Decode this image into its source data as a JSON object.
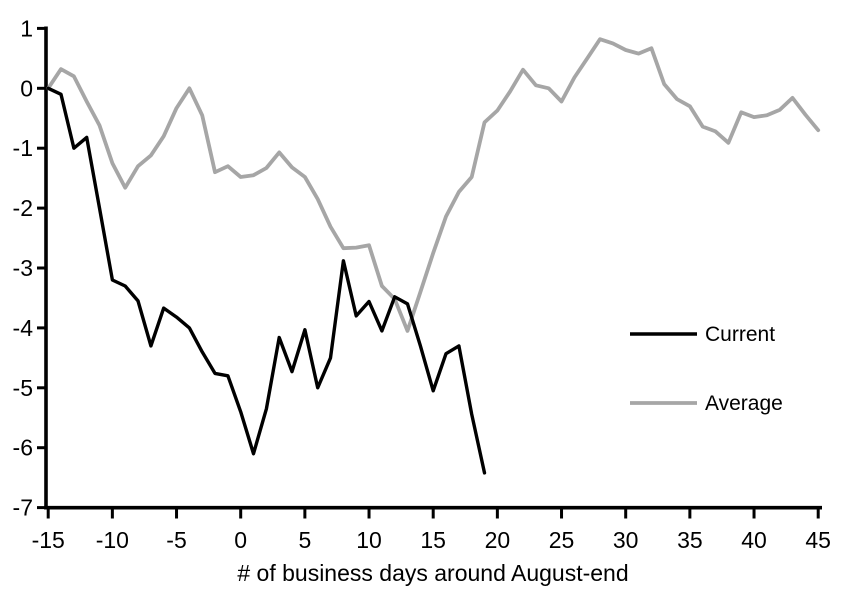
{
  "chart_data": {
    "type": "line",
    "title": "",
    "xlabel": "# of business days around August-end",
    "ylabel": "",
    "xlim": [
      -15,
      45
    ],
    "ylim": [
      -7,
      1
    ],
    "x_ticks": [
      -15,
      -10,
      -5,
      0,
      5,
      10,
      15,
      20,
      25,
      30,
      35,
      40,
      45
    ],
    "y_ticks": [
      1,
      0,
      -1,
      -2,
      -3,
      -4,
      -5,
      -6,
      -7
    ],
    "grid": false,
    "legend_position": "right-middle",
    "axis_color": "#000000",
    "series": [
      {
        "name": "Current",
        "color": "#000000",
        "stroke_width": 3.4,
        "x": [
          -15,
          -14,
          -13,
          -12,
          -11,
          -10,
          -9,
          -8,
          -7,
          -6,
          -5,
          -4,
          -3,
          -2,
          -1,
          0,
          1,
          2,
          3,
          4,
          5,
          6,
          7,
          8,
          9,
          10,
          11,
          12,
          13,
          14,
          15,
          16,
          17,
          18,
          19
        ],
        "values": [
          0,
          -0.1,
          -1,
          -0.82,
          -2,
          -3.2,
          -3.3,
          -3.55,
          -4.3,
          -3.67,
          -3.82,
          -4,
          -4.4,
          -4.76,
          -4.8,
          -5.4,
          -6.1,
          -5.35,
          -4.16,
          -4.73,
          -4.03,
          -5,
          -4.5,
          -2.88,
          -3.8,
          -3.56,
          -4.05,
          -3.48,
          -3.6,
          -4.3,
          -5.05,
          -4.43,
          -4.3,
          -5.44,
          -6.42
        ]
      },
      {
        "name": "Average",
        "color": "#a6a6a6",
        "stroke_width": 3.8,
        "x": [
          -15,
          -14,
          -13,
          -12,
          -11,
          -10,
          -9,
          -8,
          -7,
          -6,
          -5,
          -4,
          -3,
          -2,
          -1,
          0,
          1,
          2,
          3,
          4,
          5,
          6,
          7,
          8,
          9,
          10,
          11,
          12,
          13,
          14,
          15,
          16,
          17,
          18,
          19,
          20,
          21,
          22,
          23,
          24,
          25,
          26,
          27,
          28,
          29,
          30,
          31,
          32,
          33,
          34,
          35,
          36,
          37,
          38,
          39,
          40,
          41,
          42,
          43,
          44,
          45
        ],
        "values": [
          0,
          0.32,
          0.2,
          -0.22,
          -0.62,
          -1.25,
          -1.66,
          -1.3,
          -1.12,
          -0.8,
          -0.33,
          0,
          -0.45,
          -1.4,
          -1.3,
          -1.48,
          -1.45,
          -1.33,
          -1.07,
          -1.32,
          -1.48,
          -1.85,
          -2.31,
          -2.67,
          -2.66,
          -2.62,
          -3.3,
          -3.52,
          -4.05,
          -3.4,
          -2.75,
          -2.14,
          -1.73,
          -1.48,
          -0.57,
          -0.37,
          -0.05,
          0.31,
          0.05,
          0,
          -0.22,
          0.18,
          0.5,
          0.82,
          0.75,
          0.64,
          0.58,
          0.67,
          0.07,
          -0.18,
          -0.3,
          -0.64,
          -0.72,
          -0.91,
          -0.4,
          -0.48,
          -0.45,
          -0.36,
          -0.16,
          -0.44,
          -0.7
        ]
      }
    ]
  }
}
